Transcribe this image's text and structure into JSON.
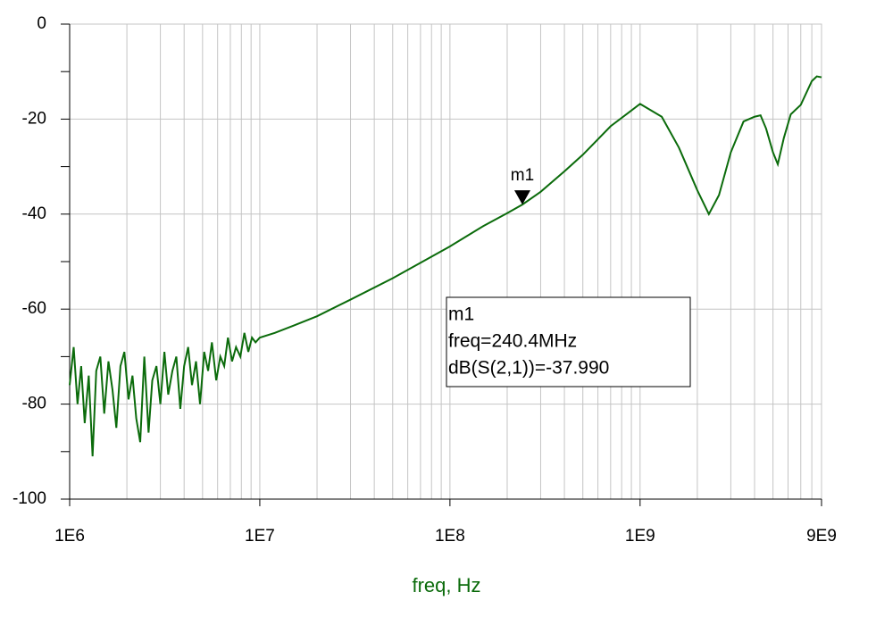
{
  "chart_data": {
    "type": "line",
    "xscale": "log",
    "grid": true,
    "x_label": "freq, Hz",
    "color": "#0b6b0b",
    "x": [
      1000000.0,
      1050000.0,
      1100000.0,
      1150000.0,
      1200000.0,
      1260000.0,
      1320000.0,
      1380000.0,
      1450000.0,
      1520000.0,
      1600000.0,
      1680000.0,
      1760000.0,
      1850000.0,
      1940000.0,
      2040000.0,
      2140000.0,
      2240000.0,
      2350000.0,
      2470000.0,
      2600000.0,
      2720000.0,
      2860000.0,
      3000000.0,
      3150000.0,
      3300000.0,
      3470000.0,
      3640000.0,
      3820000.0,
      4000000.0,
      4200000.0,
      4400000.0,
      4620000.0,
      4850000.0,
      5100000.0,
      5350000.0,
      5600000.0,
      5900000.0,
      6200000.0,
      6500000.0,
      6800000.0,
      7150000.0,
      7500000.0,
      7900000.0,
      8300000.0,
      8700000.0,
      9100000.0,
      9500000.0,
      10000000.0,
      12000000.0,
      15000000.0,
      20000000.0,
      30000000.0,
      50000000.0,
      100000000.0,
      150000000.0,
      200000000.0,
      240400000.0,
      300000000.0,
      400000000.0,
      500000000.0,
      700000000.0,
      1000000000.0,
      1300000000.0,
      1600000000.0,
      2000000000.0,
      2300000000.0,
      2600000000.0,
      3000000000.0,
      3500000000.0,
      4000000000.0,
      4300000000.0,
      4600000000.0,
      5000000000.0,
      5300000000.0,
      5700000000.0,
      6200000000.0,
      7000000000.0,
      8000000000.0,
      8500000000.0,
      9000000000.0
    ],
    "values": [
      -76,
      -68,
      -80,
      -72,
      -84,
      -74,
      -91,
      -73,
      -70,
      -82,
      -71,
      -77,
      -85,
      -72,
      -69,
      -79,
      -74,
      -83,
      -88,
      -70,
      -86,
      -75,
      -72,
      -80,
      -69,
      -78,
      -73,
      -70,
      -81,
      -72,
      -68,
      -76,
      -71,
      -80,
      -69,
      -73,
      -67,
      -75,
      -70,
      -72,
      -66,
      -71,
      -68,
      -70,
      -65,
      -69,
      -66,
      -67,
      -66,
      -65,
      -63.5,
      -61.5,
      -58,
      -53.5,
      -46.8,
      -42.5,
      -39.8,
      -37.99,
      -35.3,
      -31,
      -27.5,
      -21.5,
      -16.8,
      -19.5,
      -26,
      -35,
      -40,
      -36,
      -27,
      -20.5,
      -19.5,
      -19.2,
      -22,
      -27,
      -29.5,
      -24,
      -19,
      -17,
      -12,
      -11,
      -11.2
    ],
    "xlim": [
      1000000.0,
      9000000000.0
    ],
    "xticks": [
      {
        "value": 1000000.0,
        "label": "1E6"
      },
      {
        "value": 10000000.0,
        "label": "1E7"
      },
      {
        "value": 100000000.0,
        "label": "1E8"
      },
      {
        "value": 1000000000.0,
        "label": "1E9"
      },
      {
        "value": 9000000000.0,
        "label": "9E9"
      }
    ],
    "xminorticks": [
      2000000.0,
      3000000.0,
      4000000.0,
      5000000.0,
      6000000.0,
      7000000.0,
      8000000.0,
      9000000.0,
      20000000.0,
      30000000.0,
      40000000.0,
      50000000.0,
      60000000.0,
      70000000.0,
      80000000.0,
      90000000.0,
      200000000.0,
      300000000.0,
      400000000.0,
      500000000.0,
      600000000.0,
      700000000.0,
      800000000.0,
      900000000.0,
      2000000000.0,
      3000000000.0,
      4000000000.0,
      5000000000.0,
      6000000000.0,
      7000000000.0,
      8000000000.0
    ],
    "ylim": [
      -100,
      0
    ],
    "yticks": [
      0,
      -20,
      -40,
      -60,
      -80,
      -100
    ],
    "yminorticks": [
      -10,
      -30,
      -50,
      -70,
      -90
    ],
    "markers": [
      {
        "name": "m1",
        "x": 240400000,
        "y": -37.99,
        "label_lines": [
          "m1",
          "freq=240.4MHz",
          "dB(S(2,1))=-37.990"
        ]
      }
    ]
  }
}
